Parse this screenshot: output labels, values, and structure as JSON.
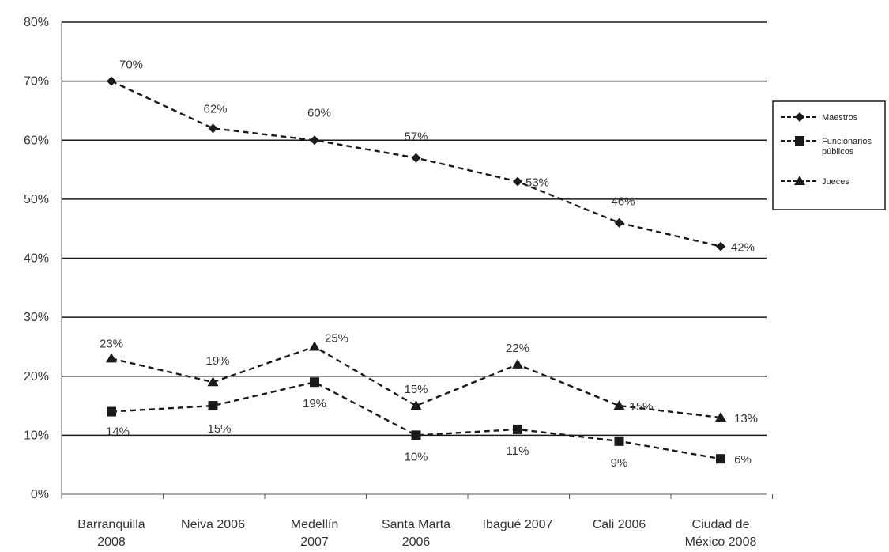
{
  "chart_data": {
    "type": "line",
    "categories": [
      [
        "Barranquilla",
        "2008"
      ],
      [
        "Neiva 2006"
      ],
      [
        "Medellín",
        "2007"
      ],
      [
        "Santa Marta",
        "2006"
      ],
      [
        "Ibagué 2007"
      ],
      [
        "Cali 2006"
      ],
      [
        "Ciudad de",
        "México 2008"
      ]
    ],
    "ylim": [
      0,
      80
    ],
    "yticks": [
      0,
      10,
      20,
      30,
      40,
      50,
      60,
      70,
      80
    ],
    "ytick_labels": [
      "0%",
      "10%",
      "20%",
      "30%",
      "40%",
      "50%",
      "60%",
      "70%",
      "80%"
    ],
    "grid": true,
    "legend_position": "right",
    "series": [
      {
        "name": "Maestros",
        "marker": "diamond",
        "color": "#222222",
        "values": [
          70,
          62,
          60,
          57,
          53,
          46,
          42
        ],
        "labels": [
          "70%",
          "62%",
          "60%",
          "57%",
          "53%",
          "46%",
          "42%"
        ]
      },
      {
        "name": "Funcionarios públicos",
        "marker": "square",
        "color": "#222222",
        "values": [
          14,
          15,
          19,
          10,
          11,
          9,
          6
        ],
        "labels": [
          "14%",
          "15%",
          "19%",
          "10%",
          "11%",
          "9%",
          "6%"
        ]
      },
      {
        "name": "Jueces",
        "marker": "triangle",
        "color": "#222222",
        "values": [
          23,
          19,
          25,
          15,
          22,
          15,
          13
        ],
        "labels": [
          "23%",
          "19%",
          "25%",
          "15%",
          "22%",
          "15%",
          "13%"
        ]
      }
    ]
  }
}
